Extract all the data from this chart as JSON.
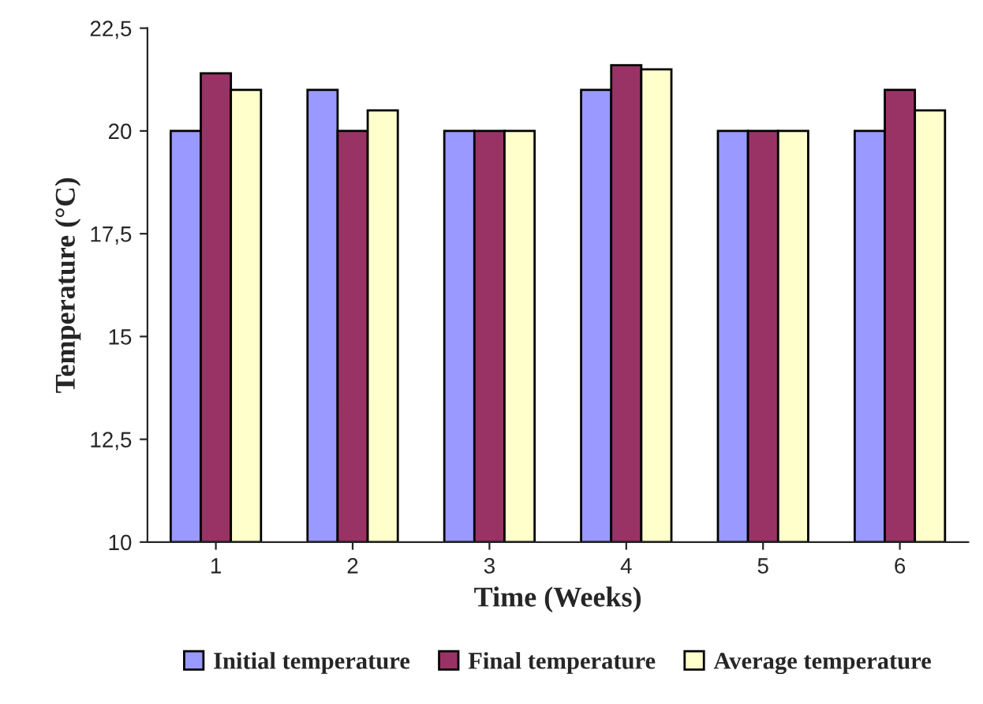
{
  "chart_data": {
    "type": "bar",
    "xlabel": "Time (Weeks)",
    "ylabel": "Temperature (°C)",
    "categories": [
      "1",
      "2",
      "3",
      "4",
      "5",
      "6"
    ],
    "series": [
      {
        "name": "Initial temperature",
        "color": "#9999ff",
        "values": [
          20,
          21,
          20,
          21,
          20,
          20
        ]
      },
      {
        "name": "Final temperature",
        "color": "#993366",
        "values": [
          21.4,
          20,
          20,
          21.6,
          20,
          21
        ]
      },
      {
        "name": "Average temperature",
        "color": "#ffffcc",
        "values": [
          21,
          20.5,
          20,
          21.5,
          20,
          20.5
        ]
      }
    ],
    "ylim": [
      10,
      22.5
    ],
    "yticks": [
      {
        "value": 10,
        "label": "10"
      },
      {
        "value": 12.5,
        "label": "12,5"
      },
      {
        "value": 15,
        "label": "15"
      },
      {
        "value": 17.5,
        "label": "17,5"
      },
      {
        "value": 20,
        "label": "20"
      },
      {
        "value": 22.5,
        "label": "22,5"
      }
    ],
    "grid": false,
    "legend": "bottom"
  }
}
